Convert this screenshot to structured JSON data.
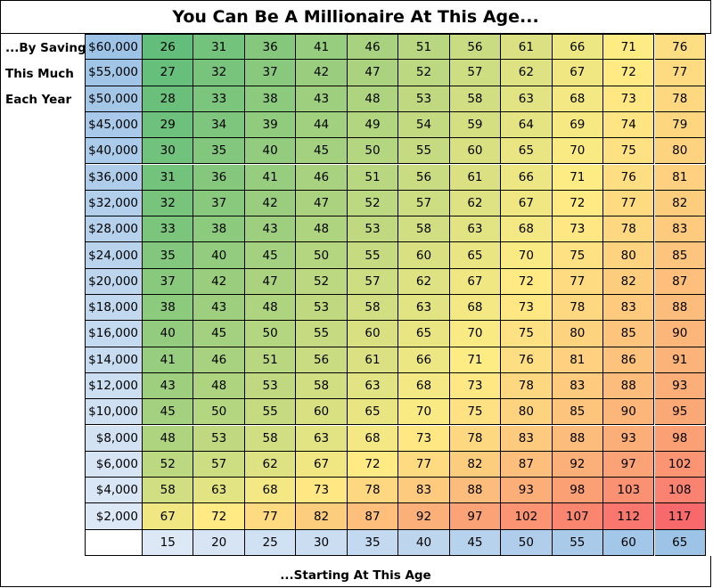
{
  "chart_data": {
    "type": "table",
    "title": "You Can Be A Millionaire At This Age...",
    "row_header_lines": [
      "...By Saving",
      "This Much",
      "Each Year"
    ],
    "column_header_label": "...Starting At This Age",
    "starting_ages": [
      15,
      20,
      25,
      30,
      35,
      40,
      45,
      50,
      55,
      60,
      65
    ],
    "annual_savings": [
      "$60,000",
      "$55,000",
      "$50,000",
      "$45,000",
      "$40,000",
      "$36,000",
      "$32,000",
      "$28,000",
      "$24,000",
      "$20,000",
      "$18,000",
      "$16,000",
      "$14,000",
      "$12,000",
      "$10,000",
      "$8,000",
      "$6,000",
      "$4,000",
      "$2,000"
    ],
    "millionaire_ages": [
      [
        26,
        31,
        36,
        41,
        46,
        51,
        56,
        61,
        66,
        71,
        76
      ],
      [
        27,
        32,
        37,
        42,
        47,
        52,
        57,
        62,
        67,
        72,
        77
      ],
      [
        28,
        33,
        38,
        43,
        48,
        53,
        58,
        63,
        68,
        73,
        78
      ],
      [
        29,
        34,
        39,
        44,
        49,
        54,
        59,
        64,
        69,
        74,
        79
      ],
      [
        30,
        35,
        40,
        45,
        50,
        55,
        60,
        65,
        70,
        75,
        80
      ],
      [
        31,
        36,
        41,
        46,
        51,
        56,
        61,
        66,
        71,
        76,
        81
      ],
      [
        32,
        37,
        42,
        47,
        52,
        57,
        62,
        67,
        72,
        77,
        82
      ],
      [
        33,
        38,
        43,
        48,
        53,
        58,
        63,
        68,
        73,
        78,
        83
      ],
      [
        35,
        40,
        45,
        50,
        55,
        60,
        65,
        70,
        75,
        80,
        85
      ],
      [
        37,
        42,
        47,
        52,
        57,
        62,
        67,
        72,
        77,
        82,
        87
      ],
      [
        38,
        43,
        48,
        53,
        58,
        63,
        68,
        73,
        78,
        83,
        88
      ],
      [
        40,
        45,
        50,
        55,
        60,
        65,
        70,
        75,
        80,
        85,
        90
      ],
      [
        41,
        46,
        51,
        56,
        61,
        66,
        71,
        76,
        81,
        86,
        91
      ],
      [
        43,
        48,
        53,
        58,
        63,
        68,
        73,
        78,
        83,
        88,
        93
      ],
      [
        45,
        50,
        55,
        60,
        65,
        70,
        75,
        80,
        85,
        90,
        95
      ],
      [
        48,
        53,
        58,
        63,
        68,
        73,
        78,
        83,
        88,
        93,
        98
      ],
      [
        52,
        57,
        62,
        67,
        72,
        77,
        82,
        87,
        92,
        97,
        102
      ],
      [
        58,
        63,
        68,
        73,
        78,
        83,
        88,
        93,
        98,
        103,
        108
      ],
      [
        67,
        72,
        77,
        82,
        87,
        92,
        97,
        102,
        107,
        112,
        117
      ]
    ],
    "color_scale": {
      "low": "#63be7b",
      "mid": "#ffeb84",
      "high": "#f8696b",
      "value_range": [
        26,
        117
      ]
    },
    "header_colors": {
      "light": "#dde8f6",
      "dark": "#9dc3e6"
    }
  }
}
